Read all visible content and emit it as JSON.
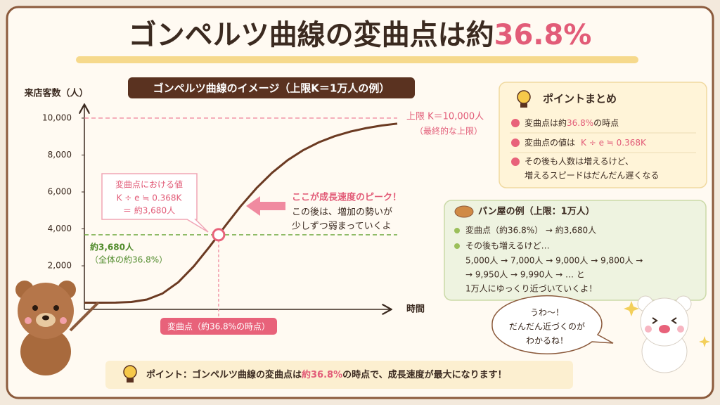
{
  "title": {
    "text": "ゴンペルツ曲線の変曲点は約",
    "highlight": "36.8%"
  },
  "chart_data": {
    "type": "line",
    "title": "ゴンペルツ曲線のイメージ（上限K＝1万人の例）",
    "ylabel": "来店客数（人）",
    "xlabel": "時間",
    "x": [
      0,
      1,
      2,
      3,
      4,
      5,
      6,
      7,
      8,
      9,
      10,
      11,
      12,
      13,
      14,
      15,
      16,
      17,
      18,
      19,
      20
    ],
    "values": [
      0,
      0,
      6,
      40,
      173,
      503,
      1108,
      1979,
      3031,
      4152,
      5236,
      6206,
      7040,
      7725,
      8269,
      8694,
      9020,
      9269,
      9456,
      9597,
      9701
    ],
    "color": "#6b3a22",
    "xlim": [
      0,
      20
    ],
    "ylim": [
      -360,
      10760
    ],
    "yticks": [
      {
        "value": 2000,
        "label": "2,000"
      },
      {
        "value": 4000,
        "label": "4,000"
      },
      {
        "value": 6000,
        "label": "6,000"
      },
      {
        "value": 8000,
        "label": "8,000"
      },
      {
        "value": 10000,
        "label": "10,000"
      }
    ],
    "grid": false,
    "limit_value": 10000,
    "limit_labels": [
      "上限 K＝10,000人",
      "（最終的な上限）"
    ],
    "inflection": {
      "x": 8.58,
      "value": 3680
    },
    "inflection_labels": [
      "約3,680人",
      "（全体の約36.8%）"
    ],
    "callout": [
      "変曲点における値",
      "K ÷ e ≒ 0.368K",
      "＝ 約3,680人"
    ],
    "peak_note": [
      "ここが成長速度のピーク！",
      "この後は、増加の勢いが",
      "少しずつ弱まっていくよ"
    ],
    "inflection_tag": "変曲点（約36.8%の時点）"
  },
  "summary": {
    "title": "ポイントまとめ",
    "items": [
      [
        "変曲点は約",
        "36.8%",
        "の時点"
      ],
      [
        "変曲点の値は",
        "K ÷ e ≒ 0.368K"
      ],
      [
        "その後も人数は増えるけど、",
        "増えるスピードはだんだん遅くなる"
      ]
    ]
  },
  "bakery": {
    "title": "パン屋の例（上限：1万人）",
    "lines": [
      "変曲点（約36.8%） → 約3,680人",
      "その後も増えるけど…",
      "5,000人 → 7,000人 → 9,000人 → 9,800人 →",
      "→ 9,950人 → 9,990人 → … と",
      "1万人にゆっくり近づいていくよ！"
    ]
  },
  "speech": [
    "うわ〜！",
    "だんだん近づくのが",
    "わかるね！"
  ],
  "footer": {
    "before": "ポイント：ゴンペルツ曲線の変曲点は",
    "highlight": "約36.8%",
    "after": "の時点で、成長速度が最大になります！"
  }
}
